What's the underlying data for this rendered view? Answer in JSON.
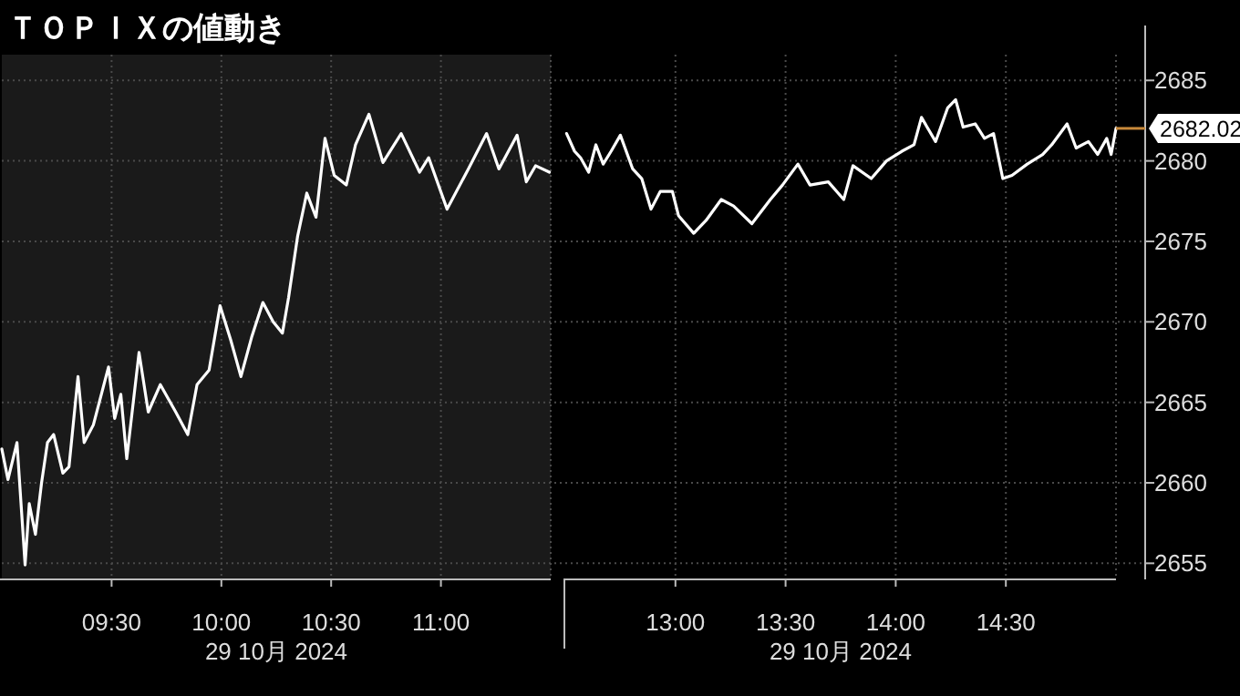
{
  "chart_data": [
    {
      "type": "line",
      "title": "ＴＯＰＩＸの値動き",
      "xlabel": "29 10月 2024",
      "xlim": [
        9,
        11.5
      ],
      "xticks": [
        {
          "value": 9.5,
          "label": "09:30"
        },
        {
          "value": 10,
          "label": "10:00"
        },
        {
          "value": 10.5,
          "label": "10:30"
        },
        {
          "value": 11,
          "label": "11:00"
        }
      ],
      "ylim": [
        2654,
        2686.6
      ],
      "yticks": [
        2655,
        2660,
        2665,
        2670,
        2675,
        2680,
        2685
      ],
      "tick_labels": "x",
      "grid": true,
      "line_style": "solid",
      "bands": [
        {
          "axis": "x",
          "from": 9,
          "to": 11.5,
          "color": "#1a1a1a"
        }
      ],
      "series": [
        {
          "color": "#ffffff",
          "x": [
            9.0,
            9.028,
            9.069,
            9.106,
            9.125,
            9.153,
            9.181,
            9.208,
            9.236,
            9.278,
            9.306,
            9.347,
            9.375,
            9.417,
            9.486,
            9.514,
            9.542,
            9.569,
            9.625,
            9.667,
            9.722,
            9.792,
            9.847,
            9.889,
            9.944,
            9.994,
            10.042,
            10.089,
            10.139,
            10.189,
            10.236,
            10.278,
            10.306,
            10.347,
            10.389,
            10.431,
            10.472,
            10.514,
            10.569,
            10.611,
            10.672,
            10.736,
            10.819,
            10.903,
            10.944,
            11.028,
            11.125,
            11.208,
            11.264,
            11.347,
            11.389,
            11.431,
            11.494
          ],
          "values": [
            2662.1,
            2660.2,
            2662.5,
            2654.9,
            2658.7,
            2656.8,
            2660.0,
            2662.5,
            2663.0,
            2660.6,
            2661.0,
            2666.6,
            2662.5,
            2663.6,
            2667.2,
            2664.0,
            2665.5,
            2661.5,
            2668.1,
            2664.4,
            2666.1,
            2664.4,
            2663.0,
            2666.1,
            2667.0,
            2671.0,
            2668.9,
            2666.6,
            2669.1,
            2671.2,
            2670.0,
            2669.3,
            2671.5,
            2675.3,
            2678.0,
            2676.5,
            2681.4,
            2679.1,
            2678.5,
            2681.0,
            2682.9,
            2679.9,
            2681.7,
            2679.3,
            2680.2,
            2677.0,
            2679.5,
            2681.7,
            2679.5,
            2681.6,
            2678.7,
            2679.7,
            2679.3
          ]
        }
      ]
    },
    {
      "type": "line",
      "xlabel": "29 10月 2024",
      "xlim": [
        12.5,
        15
      ],
      "xticks": [
        {
          "value": 13,
          "label": "13:00"
        },
        {
          "value": 13.5,
          "label": "13:30"
        },
        {
          "value": 14,
          "label": "14:00"
        },
        {
          "value": 14.5,
          "label": "14:30"
        }
      ],
      "ylim": [
        2654,
        2686.6
      ],
      "yticks": [
        2655,
        2660,
        2665,
        2670,
        2675,
        2680,
        2685
      ],
      "grid": true,
      "line_style": "solid",
      "annotations": [
        {
          "text": "2682.02",
          "x": 15,
          "y": 2682.02
        }
      ],
      "series": [
        {
          "color": "#ffffff",
          "x": [
            12.506,
            12.542,
            12.569,
            12.606,
            12.639,
            12.672,
            12.708,
            12.75,
            12.806,
            12.847,
            12.889,
            12.931,
            12.986,
            13.014,
            13.083,
            13.139,
            13.208,
            13.264,
            13.347,
            13.431,
            13.486,
            13.556,
            13.611,
            13.694,
            13.764,
            13.806,
            13.889,
            13.958,
            14.028,
            14.083,
            14.117,
            14.181,
            14.236,
            14.272,
            14.306,
            14.361,
            14.403,
            14.444,
            14.486,
            14.528,
            14.597,
            14.667,
            14.708,
            14.778,
            14.819,
            14.875,
            14.917,
            14.958,
            14.978,
            15.0
          ],
          "values": [
            2681.7,
            2680.6,
            2680.2,
            2679.3,
            2681.0,
            2679.8,
            2680.6,
            2681.6,
            2679.5,
            2678.9,
            2677.0,
            2678.1,
            2678.1,
            2676.6,
            2675.5,
            2676.3,
            2677.6,
            2677.2,
            2676.1,
            2677.6,
            2678.5,
            2679.8,
            2678.5,
            2678.7,
            2677.6,
            2679.7,
            2678.9,
            2680.0,
            2680.6,
            2681.0,
            2682.7,
            2681.2,
            2683.3,
            2683.8,
            2682.1,
            2682.3,
            2681.4,
            2681.7,
            2678.9,
            2679.1,
            2679.8,
            2680.4,
            2681.0,
            2682.3,
            2680.8,
            2681.2,
            2680.4,
            2681.4,
            2680.4,
            2682.02
          ]
        }
      ]
    }
  ]
}
